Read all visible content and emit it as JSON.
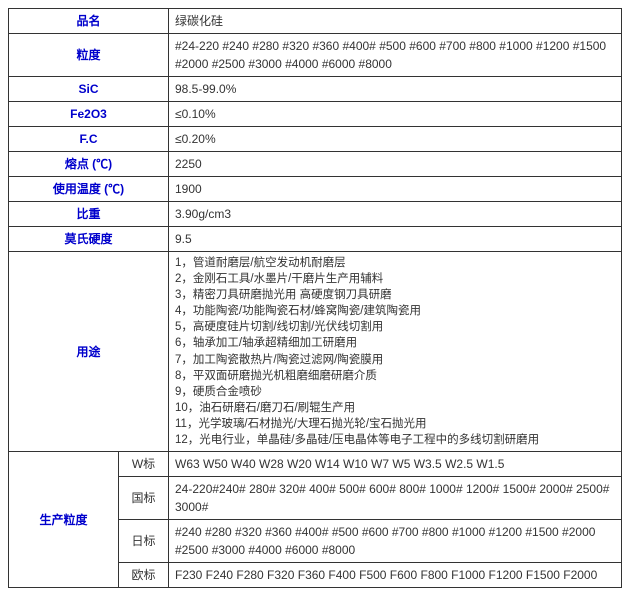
{
  "rows": [
    {
      "label": "品名",
      "value": "绿碳化硅"
    },
    {
      "label": "粒度",
      "value": "#24-220 #240 #280 #320 #360 #400# #500 #600 #700 #800 #1000 #1200 #1500 #2000 #2500 #3000 #4000 #6000 #8000"
    },
    {
      "label": "SiC",
      "value": "98.5-99.0%"
    },
    {
      "label": "Fe2O3",
      "value": "≤0.10%"
    },
    {
      "label": "F.C",
      "value": "≤0.20%"
    },
    {
      "label": "熔点 (℃)",
      "value": "2250"
    },
    {
      "label": "使用温度 (℃)",
      "value": "1900"
    },
    {
      "label": "比重",
      "value": "3.90g/cm3"
    },
    {
      "label": "莫氏硬度",
      "value": "9.5"
    }
  ],
  "uses": {
    "label": "用途",
    "items": "1，管道耐磨层/航空发动机耐磨层\n2，金刚石工具/水墨片/干磨片生产用辅料\n3，精密刀具研磨抛光用 高硬度钢刀具研磨\n4，功能陶瓷/功能陶瓷石材/蜂窝陶瓷/建筑陶瓷用\n5，高硬度硅片切割/线切割/光伏线切割用\n6，轴承加工/轴承超精细加工研磨用\n7，加工陶瓷散热片/陶瓷过滤网/陶瓷膜用\n8，平双面研磨抛光机粗磨细磨研磨介质\n9，硬质合金喷砂\n10，油石研磨石/磨刀石/刷辊生产用\n11，光学玻璃/石材抛光/大理石抛光轮/宝石抛光用\n12，光电行业，单晶硅/多晶硅/压电晶体等电子工程中的多线切割研磨用"
  },
  "production": {
    "label": "生产粒度",
    "standards": [
      {
        "name": "W标",
        "value": "W63 W50 W40 W28 W20 W14 W10 W7 W5 W3.5 W2.5 W1.5"
      },
      {
        "name": "国标",
        "value": "24-220#240# 280# 320# 400# 500# 600# 800# 1000# 1200# 1500# 2000# 2500# 3000#"
      },
      {
        "name": "日标",
        "value": "#240 #280 #320 #360 #400# #500 #600 #700 #800 #1000 #1200 #1500 #2000 #2500 #3000 #4000 #6000 #8000"
      },
      {
        "name": "欧标",
        "value": "F230 F240 F280 F320 F360 F400 F500 F600 F800 F1000 F1200 F1500 F2000"
      }
    ]
  },
  "colors": {
    "label_color": "#0000cc",
    "border_color": "#333333",
    "text_color": "#333333",
    "background": "#ffffff"
  }
}
